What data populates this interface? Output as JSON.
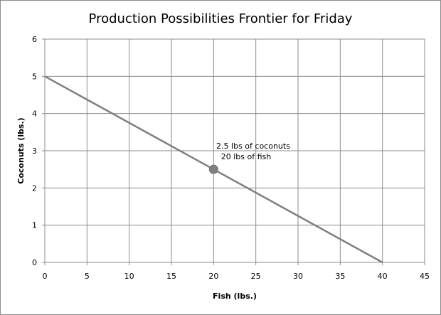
{
  "chart_data": {
    "type": "line",
    "title": "Production Possibilities Frontier for Friday",
    "xlabel": "Fish (lbs.)",
    "ylabel": "Coconuts (lbs.)",
    "xlim": [
      0,
      45
    ],
    "ylim": [
      0,
      6
    ],
    "xticks": [
      0,
      5,
      10,
      15,
      20,
      25,
      30,
      35,
      40,
      45
    ],
    "yticks": [
      0,
      1,
      2,
      3,
      4,
      5,
      6
    ],
    "grid": true,
    "legend": "none",
    "series": [
      {
        "x": [
          0,
          40
        ],
        "y": [
          5,
          0
        ],
        "color": "#7f7f7f"
      }
    ],
    "points": [
      {
        "x": 20,
        "y": 2.5,
        "color": "#7f7f7f"
      }
    ],
    "annotation": {
      "line1": "2.5 lbs of coconuts",
      "line2": "20 lbs of fish"
    }
  }
}
